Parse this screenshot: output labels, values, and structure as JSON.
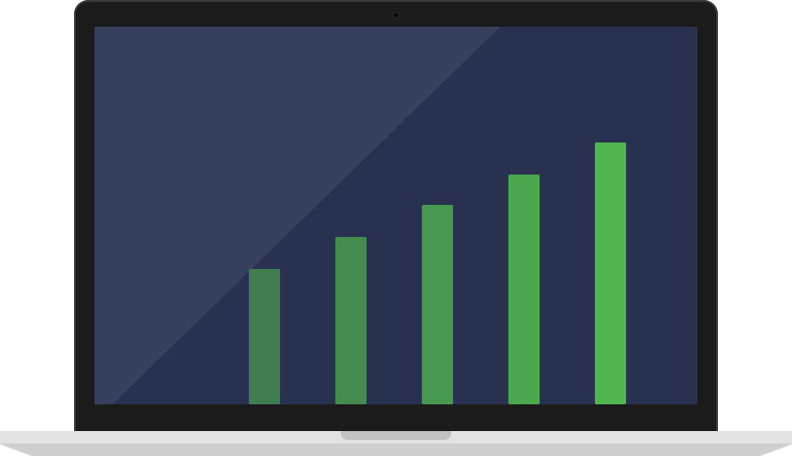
{
  "device": "laptop",
  "colors": {
    "screen": "#283250",
    "bezel": "#1b1b1c",
    "bar_start": "#3f7c4f",
    "bar_end": "#4fb64f"
  },
  "chart_data": {
    "type": "bar",
    "categories": [
      "",
      "",
      "",
      "",
      ""
    ],
    "values": [
      152,
      188,
      224,
      258,
      294
    ],
    "ylim": [
      0,
      424
    ],
    "grid": false,
    "title": "",
    "xlabel": "",
    "ylabel": ""
  }
}
